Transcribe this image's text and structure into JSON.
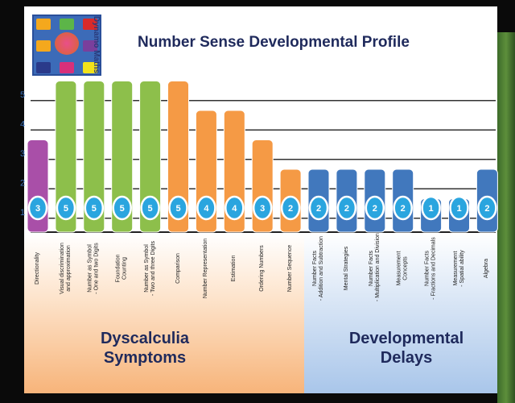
{
  "logo": {
    "text": "Dynamo Maths"
  },
  "chart_data": {
    "type": "bar",
    "title": "Number Sense Developmental Profile",
    "ylim": [
      0,
      5
    ],
    "yticks": [
      "1",
      "2",
      "3",
      "4",
      "5"
    ],
    "categories": [
      "Directionality",
      "Visual discrimination\nand approximation",
      "Number as Symbol\n- One and two Digits",
      "Foundation\nCounting",
      "Number as Symbol\n- Two and three Digits",
      "Comparison",
      "Number Representation",
      "Estimation",
      "Ordering Numbers",
      "Number Sequence",
      "Number Facts\n- Addition and Subtraction",
      "Mental Strategies",
      "Number Facts\n- Multiplication and Division",
      "Measurement\nConcepts",
      "Number Facts\n- Fractions and Decimals",
      "Measurement\n- Spatial ability",
      "Algebra"
    ],
    "values": [
      3,
      5,
      5,
      5,
      5,
      5,
      4,
      4,
      3,
      2,
      2,
      2,
      2,
      2,
      1,
      1,
      2
    ],
    "value_labels": [
      "3",
      "5",
      "5",
      "5",
      "5",
      "5",
      "4",
      "4",
      "3",
      "2",
      "2",
      "2",
      "2",
      "2",
      "1",
      "1",
      "2"
    ],
    "bar_colors": [
      "#a94fa8",
      "#8dbf4b",
      "#8dbf4b",
      "#8dbf4b",
      "#8dbf4b",
      "#f59a45",
      "#f59a45",
      "#f59a45",
      "#f59a45",
      "#f59a45",
      "#4178bd",
      "#4178bd",
      "#4178bd",
      "#4178bd",
      "#4178bd",
      "#4178bd",
      "#4178bd"
    ],
    "groups": [
      {
        "label": "Dyscalculia\nSymptoms",
        "color": "#f7b47a"
      },
      {
        "label": "Developmental\nDelays",
        "color": "#a9c6ea"
      }
    ]
  }
}
